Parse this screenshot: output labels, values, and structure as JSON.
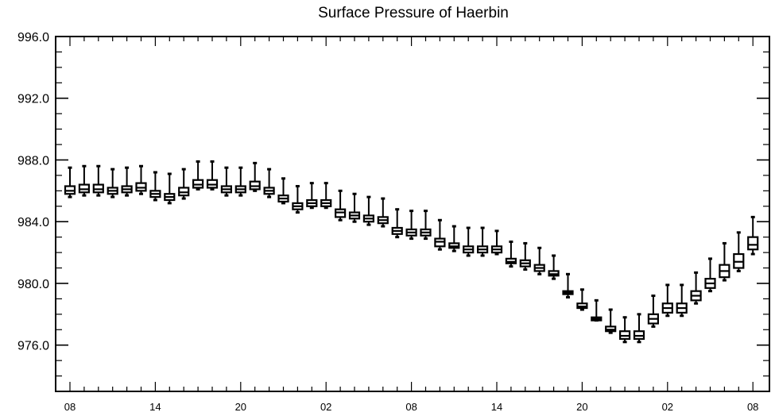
{
  "chart_data": {
    "type": "box",
    "title": "Surface Pressure of Haerbin",
    "xlabel": "",
    "ylabel": "",
    "ylim": [
      973.0,
      996.0
    ],
    "y_ticks": [
      976.0,
      980.0,
      984.0,
      988.0,
      992.0,
      996.0
    ],
    "y_tick_labels": [
      "976.0",
      "980.0",
      "984.0",
      "988.0",
      "992.0",
      "996.0"
    ],
    "x_tick_labels": [
      "08",
      "14",
      "20",
      "02",
      "08",
      "14",
      "20",
      "02",
      "08"
    ],
    "x_tick_label_positions": [
      0,
      6,
      12,
      18,
      24,
      30,
      36,
      42,
      48
    ],
    "grid": false,
    "legend": "none",
    "series": [
      {
        "x": [
          0,
          1,
          2,
          3,
          4,
          5,
          6,
          7,
          8,
          9,
          10,
          11,
          12,
          13,
          14,
          15,
          16,
          17,
          18,
          19,
          20,
          21,
          22,
          23,
          24,
          25,
          26,
          27,
          28,
          29,
          30,
          31,
          32,
          33,
          34,
          35,
          36,
          37,
          38,
          39,
          40,
          41,
          42,
          43,
          44,
          45,
          46,
          47,
          48
        ],
        "min": [
          985.6,
          985.7,
          985.7,
          985.6,
          985.7,
          985.8,
          985.4,
          985.2,
          985.5,
          986.1,
          986.1,
          985.7,
          985.7,
          986.0,
          985.6,
          985.2,
          984.6,
          984.9,
          984.9,
          984.1,
          984.0,
          983.8,
          983.7,
          983.0,
          982.9,
          982.9,
          982.2,
          982.1,
          981.8,
          981.8,
          981.9,
          981.1,
          980.9,
          980.6,
          980.3,
          979.1,
          978.3,
          977.6,
          976.8,
          976.2,
          976.2,
          977.2,
          977.9,
          977.9,
          978.7,
          979.5,
          980.2,
          980.8,
          981.9
        ],
        "q1": [
          985.8,
          985.9,
          985.9,
          985.8,
          985.9,
          986.0,
          985.6,
          985.4,
          985.7,
          986.2,
          986.2,
          985.9,
          985.9,
          986.1,
          985.8,
          985.3,
          984.8,
          985.0,
          985.0,
          984.3,
          984.2,
          984.0,
          983.9,
          983.2,
          983.1,
          983.1,
          982.4,
          982.3,
          982.0,
          982.0,
          982.0,
          981.3,
          981.1,
          980.8,
          980.5,
          979.3,
          978.4,
          977.6,
          976.9,
          976.4,
          976.4,
          977.4,
          978.1,
          978.1,
          978.9,
          979.7,
          980.4,
          981.0,
          982.2
        ],
        "median": [
          986.0,
          986.1,
          986.1,
          986.0,
          986.1,
          986.2,
          985.8,
          985.6,
          985.9,
          986.4,
          986.4,
          986.1,
          986.1,
          986.3,
          986.0,
          985.5,
          985.0,
          985.2,
          985.2,
          984.6,
          984.4,
          984.2,
          984.1,
          983.4,
          983.3,
          983.3,
          982.7,
          982.4,
          982.2,
          982.2,
          982.2,
          981.4,
          981.3,
          981.0,
          980.6,
          979.4,
          978.5,
          977.7,
          977.0,
          976.6,
          976.6,
          977.7,
          978.4,
          978.4,
          979.2,
          980.0,
          980.8,
          981.4,
          982.5
        ],
        "q3": [
          986.3,
          986.4,
          986.4,
          986.2,
          986.3,
          986.5,
          986.0,
          985.8,
          986.2,
          986.7,
          986.7,
          986.3,
          986.3,
          986.6,
          986.2,
          985.7,
          985.2,
          985.4,
          985.4,
          984.8,
          984.6,
          984.4,
          984.3,
          983.6,
          983.5,
          983.5,
          982.9,
          982.6,
          982.4,
          982.4,
          982.4,
          981.6,
          981.5,
          981.2,
          980.8,
          979.5,
          978.7,
          977.8,
          977.2,
          976.9,
          976.9,
          978.0,
          978.7,
          978.7,
          979.5,
          980.3,
          981.2,
          981.9,
          983.0
        ],
        "max": [
          987.5,
          987.6,
          987.6,
          987.4,
          987.5,
          987.6,
          987.2,
          987.1,
          987.4,
          987.9,
          987.9,
          987.5,
          987.5,
          987.8,
          987.4,
          986.8,
          986.3,
          986.5,
          986.5,
          986.0,
          985.8,
          985.6,
          985.5,
          984.8,
          984.7,
          984.7,
          984.1,
          983.7,
          983.6,
          983.6,
          983.4,
          982.7,
          982.6,
          982.3,
          981.8,
          980.6,
          979.6,
          978.9,
          978.3,
          977.8,
          978.0,
          979.2,
          979.9,
          979.9,
          980.7,
          981.6,
          982.6,
          983.3,
          984.3
        ]
      }
    ]
  }
}
